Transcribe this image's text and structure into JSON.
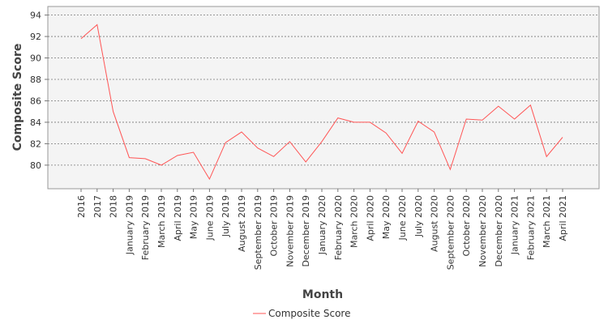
{
  "chart_data": {
    "type": "line",
    "title": "",
    "xlabel": "Month",
    "ylabel": "Composite Score",
    "ylim": [
      77.8,
      94.8
    ],
    "yticks": [
      80,
      82,
      84,
      86,
      88,
      90,
      92,
      94
    ],
    "grid": true,
    "legend_position": "bottom",
    "categories": [
      "2016",
      "2017",
      "2018",
      "January 2019",
      "February 2019",
      "March 2019",
      "April 2019",
      "May 2019",
      "June 2019",
      "July 2019",
      "August 2019",
      "September 2019",
      "October 2019",
      "November 2019",
      "December 2019",
      "January 2020",
      "February 2020",
      "March 2020",
      "April 2020",
      "May 2020",
      "June 2020",
      "July 2020",
      "August 2020",
      "September 2020",
      "October 2020",
      "November 2020",
      "December 2020",
      "January 2021",
      "February 2021",
      "March 2021",
      "April 2021"
    ],
    "series": [
      {
        "name": "Composite Score",
        "color": "#ff5555",
        "values": [
          91.8,
          93.1,
          85.0,
          80.7,
          80.6,
          80.0,
          80.9,
          81.2,
          78.7,
          82.1,
          83.1,
          81.6,
          80.8,
          82.2,
          80.3,
          82.2,
          84.4,
          84.0,
          84.0,
          83.0,
          81.1,
          84.1,
          83.1,
          79.6,
          84.3,
          84.2,
          85.5,
          84.3,
          85.6,
          80.8,
          82.6
        ]
      }
    ]
  }
}
